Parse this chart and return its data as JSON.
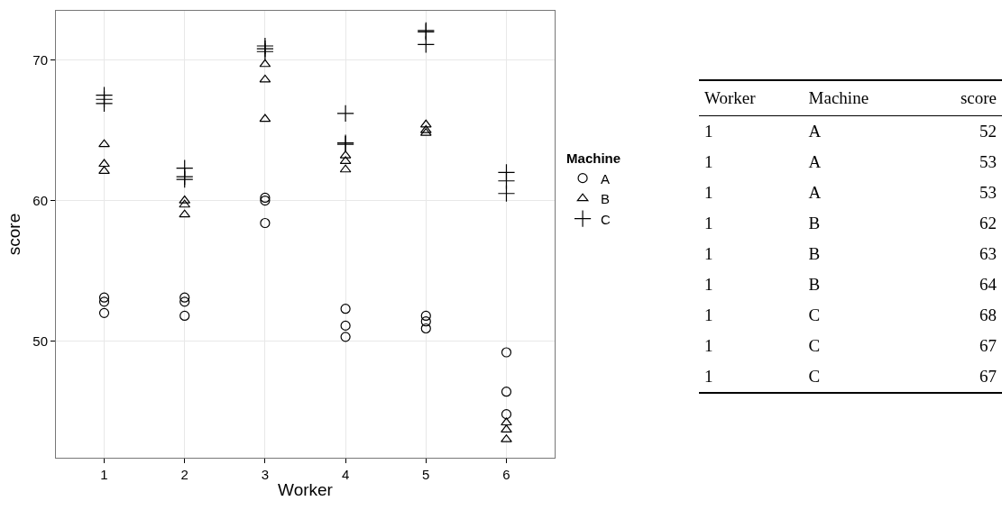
{
  "chart_data": [
    {
      "type": "scatter",
      "xlabel": "Worker",
      "ylabel": "score",
      "legend_title": "Machine",
      "legend": "right",
      "grid": true,
      "categories": [
        "1",
        "2",
        "3",
        "4",
        "5",
        "6"
      ],
      "ylim": [
        41.7,
        73.5
      ],
      "yticks": [
        50,
        60,
        70
      ],
      "series": [
        {
          "name": "A",
          "color": "#000000",
          "marker": "circle",
          "x": [
            "1",
            "1",
            "1",
            "2",
            "2",
            "2",
            "3",
            "3",
            "3",
            "4",
            "4",
            "4",
            "5",
            "5",
            "5",
            "6",
            "6",
            "6"
          ],
          "values": [
            52.0,
            52.8,
            53.1,
            51.8,
            52.8,
            53.1,
            60.0,
            60.2,
            58.4,
            51.1,
            52.3,
            50.3,
            50.9,
            51.8,
            51.4,
            46.4,
            44.8,
            49.2
          ]
        },
        {
          "name": "B",
          "color": "#000000",
          "marker": "triangle",
          "x": [
            "1",
            "1",
            "1",
            "2",
            "2",
            "2",
            "3",
            "3",
            "3",
            "4",
            "4",
            "4",
            "5",
            "5",
            "5",
            "6",
            "6",
            "6"
          ],
          "values": [
            62.1,
            62.6,
            64.0,
            59.7,
            60.0,
            59.0,
            68.6,
            65.8,
            69.7,
            63.2,
            62.8,
            62.2,
            64.8,
            65.0,
            65.4,
            43.7,
            44.2,
            43.0
          ]
        },
        {
          "name": "C",
          "color": "#000000",
          "marker": "cross",
          "x": [
            "1",
            "1",
            "1",
            "2",
            "2",
            "2",
            "3",
            "3",
            "3",
            "4",
            "4",
            "4",
            "5",
            "5",
            "5",
            "6",
            "6",
            "6"
          ],
          "values": [
            67.5,
            67.2,
            66.9,
            61.5,
            61.7,
            62.3,
            70.8,
            70.6,
            71.0,
            64.1,
            66.2,
            64.0,
            72.1,
            72.0,
            71.1,
            61.4,
            60.5,
            62.0
          ]
        }
      ]
    },
    {
      "type": "other",
      "categories": [
        "Worker",
        "Machine",
        "score"
      ],
      "cells": [
        [
          "1",
          "A",
          "52"
        ],
        [
          "1",
          "A",
          "53"
        ],
        [
          "1",
          "A",
          "53"
        ],
        [
          "1",
          "B",
          "62"
        ],
        [
          "1",
          "B",
          "63"
        ],
        [
          "1",
          "B",
          "64"
        ],
        [
          "1",
          "C",
          "68"
        ],
        [
          "1",
          "C",
          "67"
        ],
        [
          "1",
          "C",
          "67"
        ]
      ]
    }
  ]
}
